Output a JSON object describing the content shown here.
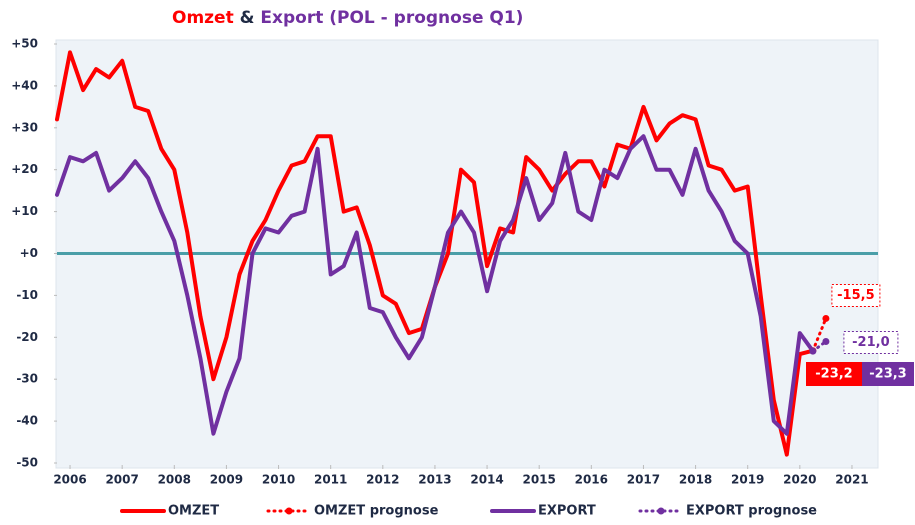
{
  "chart_data": {
    "type": "line",
    "title": [
      "Omzet",
      "&",
      "Export",
      "(POL - prognose Q1)"
    ],
    "xlim": [
      2005.75,
      2021.25
    ],
    "xticks": [
      2006,
      2007,
      2008,
      2009,
      2010,
      2011,
      2012,
      2013,
      2014,
      2015,
      2016,
      2017,
      2018,
      2019,
      2020,
      2021
    ],
    "ylim": [
      -50,
      50
    ],
    "yticks": [
      {
        "value": 50,
        "label": "+50"
      },
      {
        "value": 40,
        "label": "+40"
      },
      {
        "value": 30,
        "label": "+30"
      },
      {
        "value": 20,
        "label": "+20"
      },
      {
        "value": 10,
        "label": "+10"
      },
      {
        "value": 0,
        "label": "+0"
      },
      -10,
      -20,
      -30,
      -40,
      -50
    ],
    "zero_line_color": "#4a9ea8",
    "legend": "bottom",
    "series": [
      {
        "name": "OMZET",
        "color": "#ff0000",
        "style": "solid",
        "x": [
          2005.75,
          2006,
          2006.25,
          2006.5,
          2006.75,
          2007,
          2007.25,
          2007.5,
          2007.75,
          2008,
          2008.25,
          2008.5,
          2008.75,
          2009,
          2009.25,
          2009.5,
          2009.75,
          2010,
          2010.25,
          2010.5,
          2010.75,
          2011,
          2011.25,
          2011.5,
          2011.75,
          2012,
          2012.25,
          2012.5,
          2012.75,
          2013,
          2013.25,
          2013.5,
          2013.75,
          2014,
          2014.25,
          2014.5,
          2014.75,
          2015,
          2015.25,
          2015.5,
          2015.75,
          2016,
          2016.25,
          2016.5,
          2016.75,
          2017,
          2017.25,
          2017.5,
          2017.75,
          2018,
          2018.25,
          2018.5,
          2018.75,
          2019,
          2019.25,
          2019.5,
          2019.75,
          2020,
          2020.25
        ],
        "values": [
          32,
          48,
          39,
          44,
          42,
          46,
          35,
          34,
          25,
          20,
          5,
          -15,
          -30,
          -20,
          -5,
          3,
          8,
          15,
          21,
          22,
          28,
          28,
          10,
          11,
          2,
          -10,
          -12,
          -19,
          -18,
          -8,
          0,
          20,
          17,
          -3,
          6,
          5,
          23,
          20,
          15,
          19,
          22,
          22,
          16,
          26,
          25,
          35,
          27,
          31,
          33,
          32,
          21,
          20,
          15,
          16,
          -10,
          -35,
          -48,
          -24,
          -23.2
        ]
      },
      {
        "name": "OMZET prognose",
        "color": "#ff0000",
        "style": "dotted",
        "x": [
          2020.25,
          2020.5
        ],
        "values": [
          -23.2,
          -15.5
        ],
        "value_labels": [
          "-23,2",
          "-15,5"
        ]
      },
      {
        "name": "EXPORT",
        "color": "#7030a0",
        "style": "solid",
        "x": [
          2005.75,
          2006,
          2006.25,
          2006.5,
          2006.75,
          2007,
          2007.25,
          2007.5,
          2007.75,
          2008,
          2008.25,
          2008.5,
          2008.75,
          2009,
          2009.25,
          2009.5,
          2009.75,
          2010,
          2010.25,
          2010.5,
          2010.75,
          2011,
          2011.25,
          2011.5,
          2011.75,
          2012,
          2012.25,
          2012.5,
          2012.75,
          2013,
          2013.25,
          2013.5,
          2013.75,
          2014,
          2014.25,
          2014.5,
          2014.75,
          2015,
          2015.25,
          2015.5,
          2015.75,
          2016,
          2016.25,
          2016.5,
          2016.75,
          2017,
          2017.25,
          2017.5,
          2017.75,
          2018,
          2018.25,
          2018.5,
          2018.75,
          2019,
          2019.25,
          2019.5,
          2019.75,
          2020,
          2020.25
        ],
        "values": [
          14,
          23,
          22,
          24,
          15,
          18,
          22,
          18,
          10,
          3,
          -10,
          -25,
          -43,
          -33,
          -25,
          0,
          6,
          5,
          9,
          10,
          25,
          -5,
          -3,
          5,
          -13,
          -14,
          -20,
          -25,
          -20,
          -8,
          5,
          10,
          5,
          -9,
          3,
          8,
          18,
          8,
          12,
          24,
          10,
          8,
          20,
          18,
          25,
          28,
          20,
          20,
          14,
          25,
          15,
          10,
          3,
          0,
          -15,
          -40,
          -43,
          -19,
          -23.3
        ]
      },
      {
        "name": "EXPORT prognose",
        "color": "#7030a0",
        "style": "dotted",
        "x": [
          2020.25,
          2020.5
        ],
        "values": [
          -23.3,
          -21.0
        ],
        "value_labels": [
          "-23,3",
          "-21,0"
        ]
      }
    ]
  }
}
